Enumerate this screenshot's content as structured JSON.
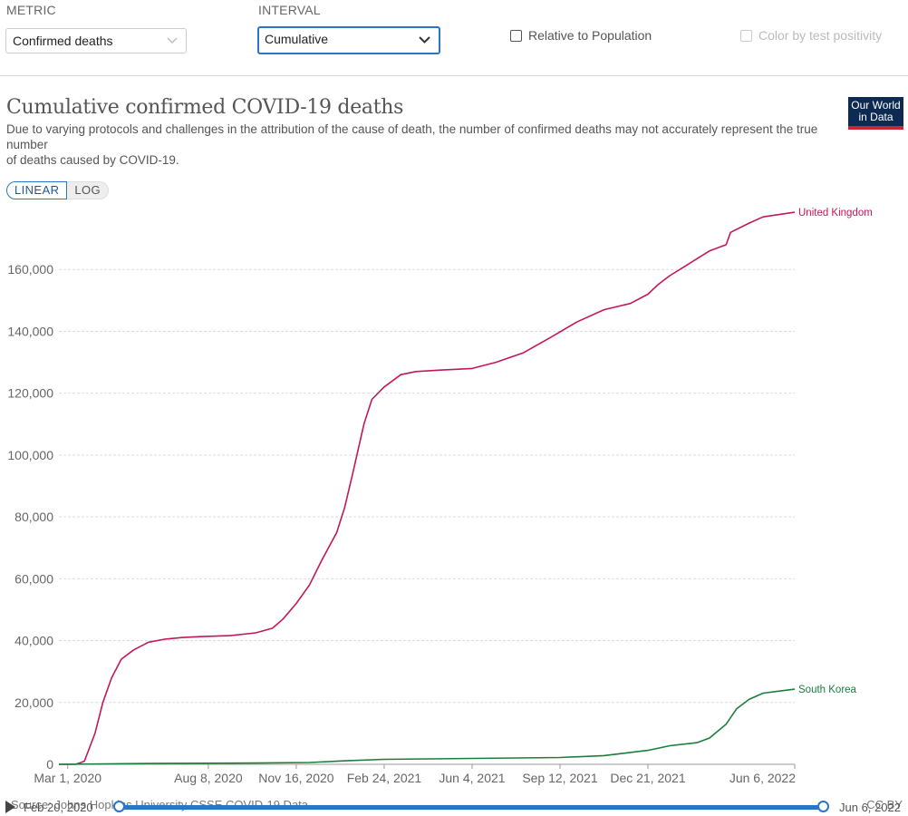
{
  "controls": {
    "metric_label": "METRIC",
    "metric_value": "Confirmed deaths",
    "interval_label": "INTERVAL",
    "interval_value": "Cumulative",
    "relative_label": "Relative to Population",
    "color_label": "Color by test positivity"
  },
  "header": {
    "title": "Cumulative confirmed COVID-19 deaths",
    "subtitle_line1": "Due to varying protocols and challenges in the attribution of the cause of death, the number of confirmed deaths may not accurately represent the true number",
    "subtitle_line2": "of deaths caused by COVID-19.",
    "logo_line1": "Our World",
    "logo_line2": "in Data"
  },
  "scale": {
    "linear": "LINEAR",
    "log": "LOG"
  },
  "footer": {
    "source": "Source: Johns Hopkins University CSSE COVID-19 Data",
    "license": "CC BY",
    "timeline_start": "Feb 20, 2020",
    "timeline_end": "Jun 6, 2022"
  },
  "colors": {
    "uk": "#c2185b",
    "korea": "#1a7f3c",
    "accent": "#2a76c6"
  },
  "chart_data": {
    "type": "line",
    "title": "Cumulative confirmed COVID-19 deaths",
    "x_range": [
      "2020-02-20",
      "2022-06-06"
    ],
    "ylim": [
      0,
      180000
    ],
    "yticks": [
      0,
      20000,
      40000,
      60000,
      80000,
      100000,
      120000,
      140000,
      160000
    ],
    "ytick_labels": [
      "0",
      "20,000",
      "40,000",
      "60,000",
      "80,000",
      "100,000",
      "120,000",
      "140,000",
      "160,000"
    ],
    "xticks": [
      "2020-03-01",
      "2020-08-08",
      "2020-11-16",
      "2021-02-24",
      "2021-06-04",
      "2021-09-12",
      "2021-12-21",
      "2022-06-06"
    ],
    "xtick_labels": [
      "Mar 1, 2020",
      "Aug 8, 2020",
      "Nov 16, 2020",
      "Feb 24, 2021",
      "Jun 4, 2021",
      "Sep 12, 2021",
      "Dec 21, 2021",
      "Jun 6, 2022"
    ],
    "series": [
      {
        "name": "United Kingdom",
        "x": [
          "2020-02-20",
          "2020-03-10",
          "2020-03-20",
          "2020-04-01",
          "2020-04-10",
          "2020-04-20",
          "2020-05-01",
          "2020-05-15",
          "2020-06-01",
          "2020-06-20",
          "2020-07-10",
          "2020-08-01",
          "2020-09-01",
          "2020-10-01",
          "2020-10-20",
          "2020-11-01",
          "2020-11-16",
          "2020-12-01",
          "2020-12-15",
          "2021-01-01",
          "2021-01-10",
          "2021-01-20",
          "2021-02-01",
          "2021-02-10",
          "2021-02-24",
          "2021-03-15",
          "2021-04-01",
          "2021-05-01",
          "2021-06-04",
          "2021-07-01",
          "2021-08-01",
          "2021-09-01",
          "2021-10-01",
          "2021-11-01",
          "2021-12-01",
          "2021-12-21",
          "2022-01-01",
          "2022-01-15",
          "2022-02-01",
          "2022-03-01",
          "2022-03-20",
          "2022-03-25",
          "2022-04-15",
          "2022-05-01",
          "2022-06-06"
        ],
        "values": [
          0,
          0,
          1000,
          10000,
          20000,
          28000,
          34000,
          37000,
          39500,
          40500,
          41000,
          41300,
          41600,
          42500,
          44000,
          47000,
          52000,
          58000,
          66000,
          75000,
          83000,
          95000,
          110000,
          118000,
          122000,
          126000,
          127000,
          127500,
          128000,
          130000,
          133000,
          138000,
          143000,
          147000,
          149000,
          152000,
          155000,
          158000,
          161000,
          166000,
          168000,
          172000,
          175000,
          177000,
          178500
        ]
      },
      {
        "name": "South Korea",
        "x": [
          "2020-02-20",
          "2020-06-01",
          "2020-10-01",
          "2020-12-01",
          "2021-01-15",
          "2021-02-24",
          "2021-06-04",
          "2021-09-12",
          "2021-11-01",
          "2021-12-21",
          "2022-01-15",
          "2022-02-15",
          "2022-03-01",
          "2022-03-20",
          "2022-04-01",
          "2022-04-15",
          "2022-05-01",
          "2022-06-06"
        ],
        "values": [
          0,
          250,
          400,
          600,
          1200,
          1600,
          1900,
          2200,
          2800,
          4500,
          6000,
          7000,
          8500,
          13000,
          18000,
          21000,
          23000,
          24300
        ]
      }
    ]
  }
}
